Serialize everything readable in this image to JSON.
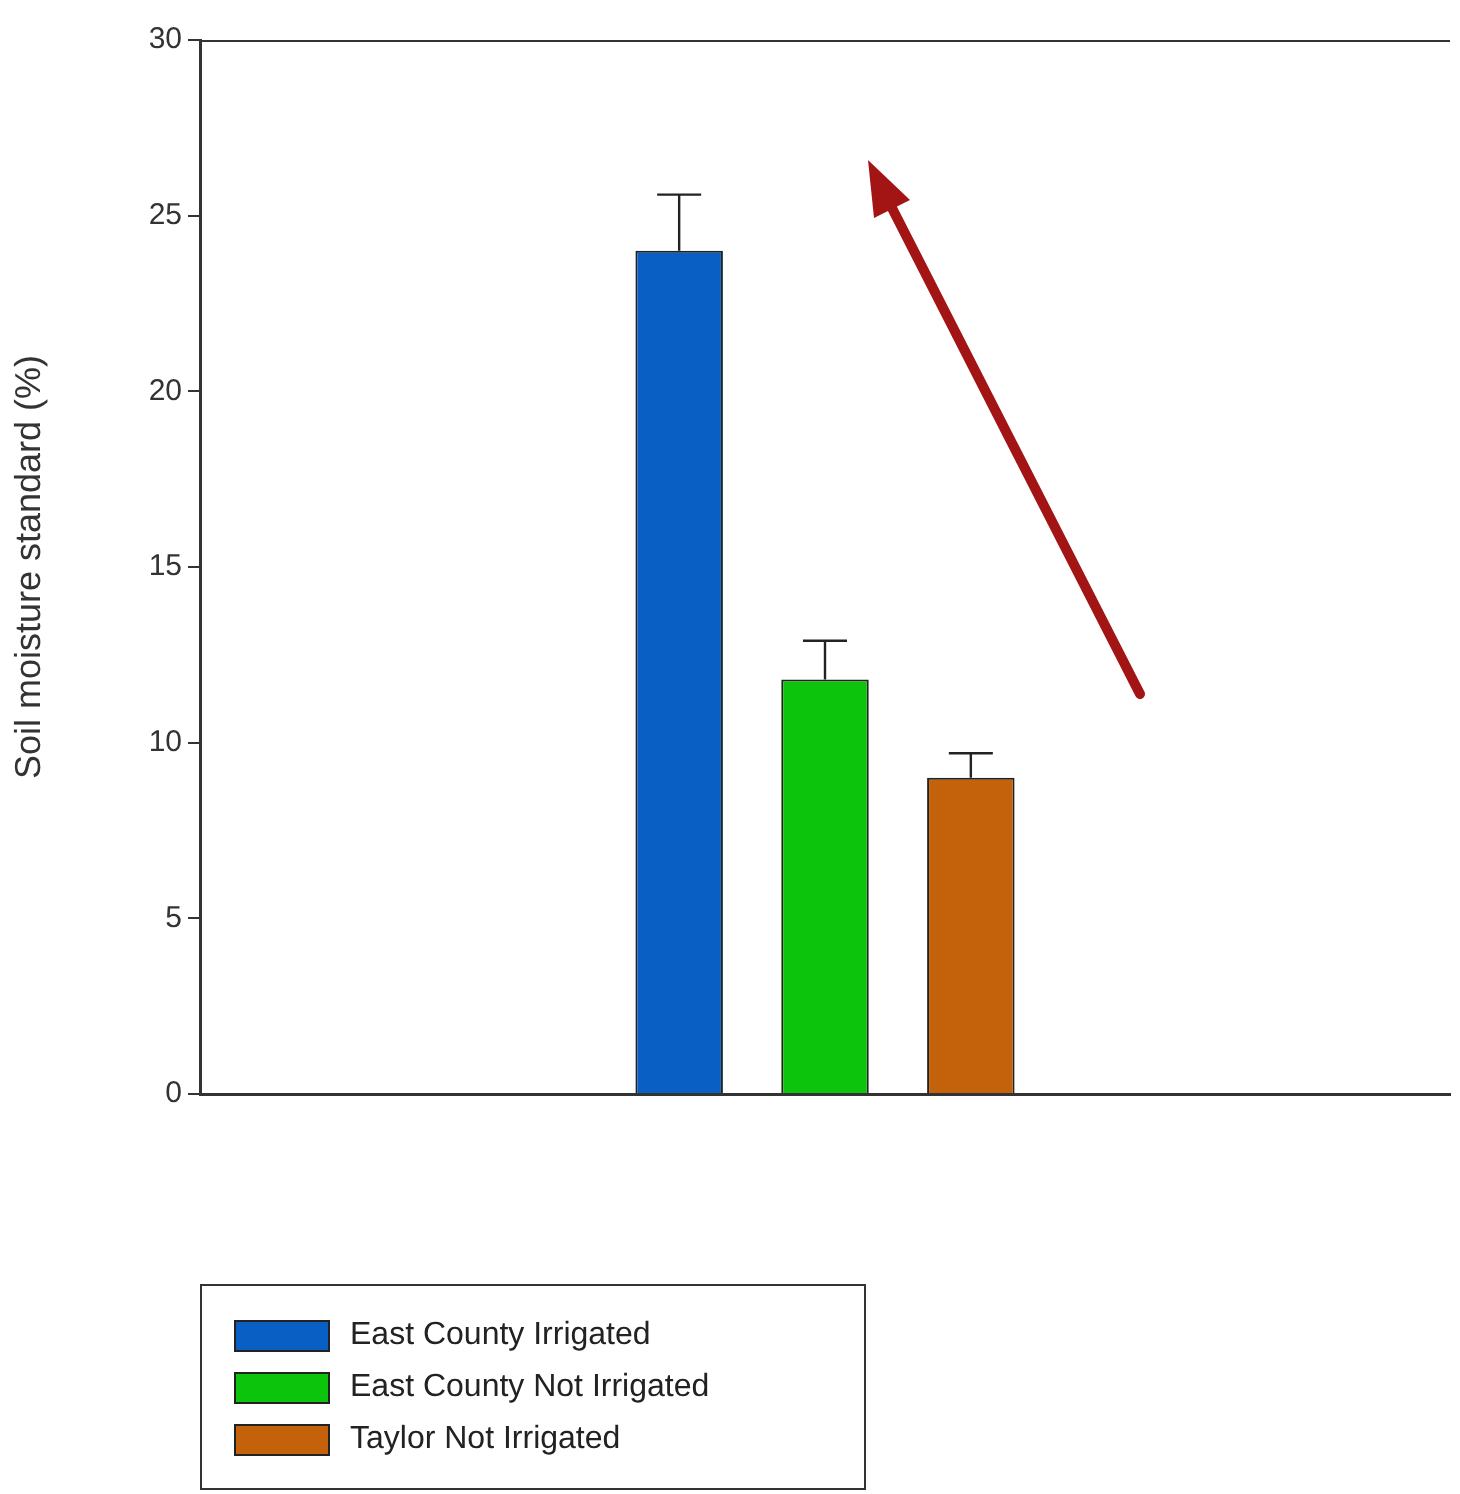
{
  "chart_data": {
    "type": "bar",
    "ylabel": "Soil moisture standard (%)",
    "categories": [
      null
    ],
    "series": [
      {
        "name": "East County Irrigated",
        "color": "#0a5fc4",
        "values": [
          24
        ],
        "errors": [
          [
            24,
            25.6
          ]
        ]
      },
      {
        "name": "East County Not Irrigated",
        "color": "#0bc40b",
        "values": [
          11.8
        ],
        "errors": [
          [
            11.8,
            12.9
          ]
        ]
      },
      {
        "name": "Taylor Not Irrigated",
        "color": "#c4620b",
        "values": [
          9
        ],
        "errors": [
          [
            9,
            9.7
          ]
        ]
      }
    ],
    "ylim": [
      0,
      30
    ],
    "yticks": [
      0,
      5,
      10,
      15,
      20,
      25,
      30
    ],
    "grid": false,
    "legend": "bottom left"
  }
}
